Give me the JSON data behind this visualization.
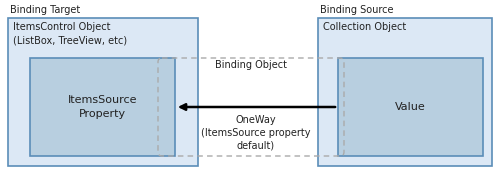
{
  "fig_bg": "#ffffff",
  "ax_bg": "#ffffff",
  "outer_fill": "#dce8f5",
  "outer_edge": "#5b8db8",
  "inner_fill": "#b8cfe0",
  "inner_edge": "#5b8db8",
  "dash_edge": "#aaaaaa",
  "label_binding_target": "Binding Target",
  "label_binding_source": "Binding Source",
  "label_itemscontrol": "ItemsControl Object\n(ListBox, TreeView, etc)",
  "label_collection": "Collection Object",
  "label_itemssource": "ItemsSource\nProperty",
  "label_value": "Value",
  "label_binding_object": "Binding Object",
  "label_oneway": "OneWay\n(ItemsSource property\ndefault)",
  "font_size_header": 7.0,
  "font_size_box_title": 7.0,
  "font_size_inner": 8.0,
  "font_size_label": 7.0
}
